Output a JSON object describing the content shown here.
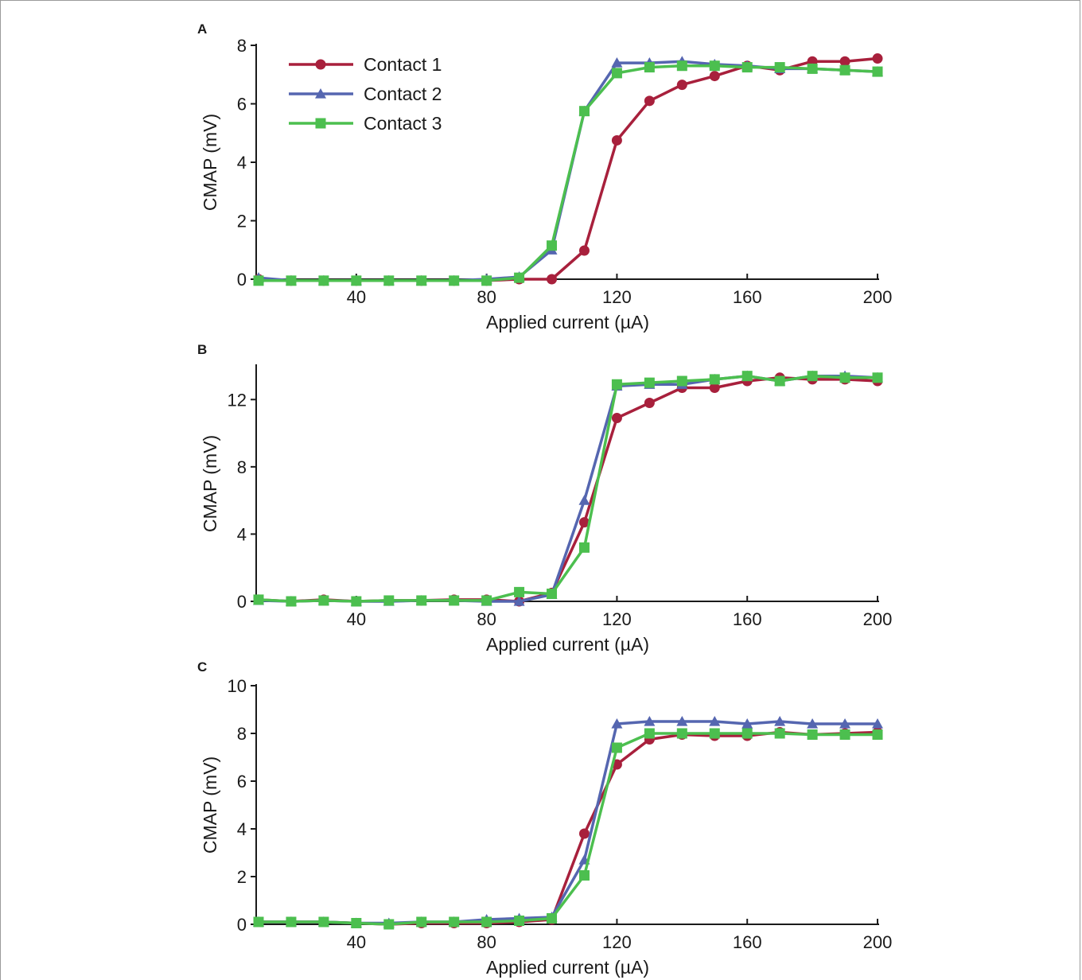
{
  "legend": [
    {
      "name": "Contact 1",
      "color": "#a8203c",
      "marker": "circle"
    },
    {
      "name": "Contact 2",
      "color": "#5566b0",
      "marker": "triangle"
    },
    {
      "name": "Contact 3",
      "color": "#4cbf4f",
      "marker": "square"
    }
  ],
  "chart_data": [
    {
      "type": "line",
      "panel": "A",
      "xlabel": "Applied current (µA)",
      "ylabel": "CMAP (mV)",
      "xlim": [
        10,
        200
      ],
      "ylim": [
        0,
        8
      ],
      "xticks": [
        40,
        80,
        120,
        160,
        200
      ],
      "yticks": [
        0,
        2,
        4,
        6,
        8
      ],
      "x": [
        10,
        20,
        30,
        40,
        50,
        60,
        70,
        80,
        90,
        100,
        110,
        120,
        130,
        140,
        150,
        160,
        170,
        180,
        190,
        200
      ],
      "legend_position": "top-left",
      "series": [
        {
          "name": "Contact 1",
          "values": [
            0.0,
            -0.05,
            -0.05,
            -0.05,
            -0.05,
            -0.05,
            -0.05,
            -0.05,
            0.0,
            0.0,
            0.98,
            4.75,
            6.1,
            6.65,
            6.95,
            7.3,
            7.15,
            7.45,
            7.45,
            7.55
          ]
        },
        {
          "name": "Contact 2",
          "values": [
            0.05,
            -0.05,
            -0.05,
            -0.05,
            -0.05,
            -0.05,
            -0.05,
            0.0,
            0.08,
            1.0,
            5.75,
            7.4,
            7.4,
            7.45,
            7.35,
            7.3,
            7.2,
            7.2,
            7.15,
            7.1
          ]
        },
        {
          "name": "Contact 3",
          "values": [
            -0.05,
            -0.05,
            -0.05,
            -0.05,
            -0.05,
            -0.05,
            -0.05,
            -0.05,
            0.05,
            1.15,
            5.75,
            7.05,
            7.25,
            7.3,
            7.3,
            7.25,
            7.25,
            7.2,
            7.15,
            7.1
          ]
        }
      ]
    },
    {
      "type": "line",
      "panel": "B",
      "xlabel": "Applied current (µA)",
      "ylabel": "CMAP (mV)",
      "xlim": [
        10,
        200
      ],
      "ylim": [
        0,
        14
      ],
      "xticks": [
        40,
        80,
        120,
        160,
        200
      ],
      "yticks": [
        0,
        4,
        8,
        12
      ],
      "x": [
        10,
        20,
        30,
        40,
        50,
        60,
        70,
        80,
        90,
        100,
        110,
        120,
        130,
        140,
        150,
        160,
        170,
        180,
        190,
        200
      ],
      "series": [
        {
          "name": "Contact 1",
          "values": [
            0.1,
            0.0,
            0.1,
            0.0,
            0.05,
            0.05,
            0.1,
            0.1,
            0.0,
            0.5,
            4.7,
            10.9,
            11.8,
            12.7,
            12.7,
            13.1,
            13.3,
            13.2,
            13.2,
            13.1
          ]
        },
        {
          "name": "Contact 2",
          "values": [
            0.05,
            0.0,
            0.05,
            0.0,
            0.0,
            0.05,
            0.05,
            0.0,
            0.0,
            0.4,
            6.0,
            12.8,
            12.9,
            12.9,
            13.2,
            13.4,
            13.1,
            13.4,
            13.4,
            13.3
          ]
        },
        {
          "name": "Contact 3",
          "values": [
            0.1,
            0.0,
            0.05,
            0.0,
            0.05,
            0.05,
            0.05,
            0.05,
            0.55,
            0.45,
            3.2,
            12.9,
            13.0,
            13.1,
            13.2,
            13.4,
            13.1,
            13.4,
            13.3,
            13.3
          ]
        }
      ]
    },
    {
      "type": "line",
      "panel": "C",
      "xlabel": "Applied current (µA)",
      "ylabel": "CMAP (mV)",
      "xlim": [
        10,
        200
      ],
      "ylim": [
        0,
        10
      ],
      "xticks": [
        40,
        80,
        120,
        160,
        200
      ],
      "yticks": [
        0,
        2,
        4,
        6,
        8,
        10
      ],
      "x": [
        10,
        20,
        30,
        40,
        50,
        60,
        70,
        80,
        90,
        100,
        110,
        120,
        130,
        140,
        150,
        160,
        170,
        180,
        190,
        200
      ],
      "series": [
        {
          "name": "Contact 1",
          "values": [
            0.1,
            0.1,
            0.1,
            0.05,
            0.0,
            0.05,
            0.05,
            0.05,
            0.1,
            0.2,
            3.8,
            6.7,
            7.75,
            7.95,
            7.9,
            7.9,
            8.05,
            7.95,
            8.0,
            8.05
          ]
        },
        {
          "name": "Contact 2",
          "values": [
            0.1,
            0.1,
            0.1,
            0.05,
            0.05,
            0.1,
            0.1,
            0.2,
            0.25,
            0.3,
            2.7,
            8.4,
            8.5,
            8.5,
            8.5,
            8.4,
            8.5,
            8.4,
            8.4,
            8.4
          ]
        },
        {
          "name": "Contact 3",
          "values": [
            0.1,
            0.1,
            0.1,
            0.05,
            0.0,
            0.1,
            0.1,
            0.1,
            0.15,
            0.25,
            2.05,
            7.4,
            8.0,
            8.0,
            8.0,
            8.0,
            8.0,
            7.95,
            7.95,
            7.95
          ]
        }
      ]
    }
  ]
}
